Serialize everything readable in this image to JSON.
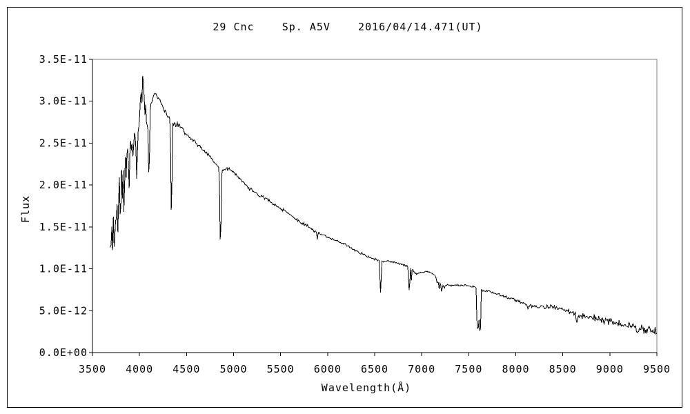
{
  "title": "29 Cnc    Sp. A5V    2016/04/14.471(UT)",
  "frame": {
    "background": "#ffffff",
    "outer_border_color": "#000000",
    "plot_border_color": "#808080",
    "axis_color": "#000000",
    "line_color": "#000000"
  },
  "chart_data": {
    "type": "line",
    "title": "29 Cnc    Sp. A5V    2016/04/14.471(UT)",
    "xlabel": "Wavelength(Å)",
    "ylabel": "Flux",
    "xlim": [
      3500,
      9500
    ],
    "ylim_flux": [
      0,
      3.5e-11
    ],
    "grid": false,
    "legend": false,
    "x_ticks": [
      3500,
      4000,
      4500,
      5000,
      5500,
      6000,
      6500,
      7000,
      7500,
      8000,
      8500,
      9000,
      9500
    ],
    "y_ticks": [
      {
        "value": 0,
        "label": "0.0E+00"
      },
      {
        "value": 5,
        "label": "5.0E-12"
      },
      {
        "value": 10,
        "label": "1.0E-11"
      },
      {
        "value": 15,
        "label": "1.5E-11"
      },
      {
        "value": 20,
        "label": "2.0E-11"
      },
      {
        "value": 25,
        "label": "2.5E-11"
      },
      {
        "value": 30,
        "label": "3.0E-11"
      },
      {
        "value": 35,
        "label": "3.5E-11"
      }
    ],
    "flux_unit_scale": 1e-12,
    "wavelength_range": [
      3690,
      9500
    ],
    "sample_step": 8,
    "continuum": [
      [
        3690,
        13.0
      ],
      [
        3710,
        14.5
      ],
      [
        3730,
        15.5
      ],
      [
        3760,
        17.5
      ],
      [
        3790,
        20.0
      ],
      [
        3820,
        21.5
      ],
      [
        3850,
        23.5
      ],
      [
        3880,
        24.5
      ],
      [
        3910,
        25.5
      ],
      [
        3940,
        26.2
      ],
      [
        3970,
        26.5
      ],
      [
        3995,
        27.2
      ],
      [
        4010,
        30.0
      ],
      [
        4035,
        33.0
      ],
      [
        4050,
        31.2
      ],
      [
        4070,
        29.5
      ],
      [
        4090,
        28.8
      ],
      [
        4115,
        29.5
      ],
      [
        4140,
        30.5
      ],
      [
        4165,
        31.0
      ],
      [
        4195,
        30.5
      ],
      [
        4225,
        30.0
      ],
      [
        4260,
        28.9
      ],
      [
        4300,
        28.2
      ],
      [
        4330,
        27.8
      ],
      [
        4365,
        27.2
      ],
      [
        4400,
        27.2
      ],
      [
        4460,
        26.6
      ],
      [
        4520,
        25.8
      ],
      [
        4580,
        25.2
      ],
      [
        4640,
        24.6
      ],
      [
        4700,
        23.9
      ],
      [
        4760,
        23.3
      ],
      [
        4810,
        22.6
      ],
      [
        4845,
        22.0
      ],
      [
        4880,
        21.6
      ],
      [
        4930,
        22.0
      ],
      [
        4975,
        21.8
      ],
      [
        5025,
        21.2
      ],
      [
        5080,
        20.5
      ],
      [
        5140,
        19.9
      ],
      [
        5200,
        19.4
      ],
      [
        5260,
        18.9
      ],
      [
        5320,
        18.5
      ],
      [
        5380,
        18.1
      ],
      [
        5440,
        17.6
      ],
      [
        5500,
        17.2
      ],
      [
        5560,
        16.8
      ],
      [
        5620,
        16.3
      ],
      [
        5680,
        15.8
      ],
      [
        5740,
        15.4
      ],
      [
        5800,
        15.0
      ],
      [
        5860,
        14.5
      ],
      [
        5920,
        14.2
      ],
      [
        5980,
        13.9
      ],
      [
        6040,
        13.6
      ],
      [
        6100,
        13.3
      ],
      [
        6160,
        13.0
      ],
      [
        6220,
        12.7
      ],
      [
        6280,
        12.3
      ],
      [
        6340,
        11.9
      ],
      [
        6400,
        11.6
      ],
      [
        6460,
        11.3
      ],
      [
        6520,
        11.1
      ],
      [
        6580,
        10.9
      ],
      [
        6640,
        10.9
      ],
      [
        6700,
        10.8
      ],
      [
        6760,
        10.6
      ],
      [
        6820,
        10.4
      ],
      [
        6880,
        10.1
      ],
      [
        6940,
        9.4
      ],
      [
        7000,
        9.6
      ],
      [
        7060,
        9.7
      ],
      [
        7120,
        9.4
      ],
      [
        7180,
        8.8
      ],
      [
        7240,
        8.1
      ],
      [
        7300,
        8.0
      ],
      [
        7360,
        8.1
      ],
      [
        7420,
        8.0
      ],
      [
        7480,
        8.0
      ],
      [
        7540,
        7.9
      ],
      [
        7600,
        7.7
      ],
      [
        7660,
        7.3
      ],
      [
        7720,
        7.3
      ],
      [
        7780,
        7.1
      ],
      [
        7840,
        6.8
      ],
      [
        7900,
        6.6
      ],
      [
        7960,
        6.4
      ],
      [
        8020,
        6.2
      ],
      [
        8080,
        5.9
      ],
      [
        8140,
        5.6
      ],
      [
        8200,
        5.5
      ],
      [
        8260,
        5.4
      ],
      [
        8320,
        5.4
      ],
      [
        8380,
        5.5
      ],
      [
        8440,
        5.4
      ],
      [
        8500,
        5.2
      ],
      [
        8560,
        5.0
      ],
      [
        8620,
        4.7
      ],
      [
        8680,
        4.4
      ],
      [
        8740,
        4.3
      ],
      [
        8800,
        4.2
      ],
      [
        8860,
        4.1
      ],
      [
        8920,
        3.9
      ],
      [
        8980,
        3.8
      ],
      [
        9040,
        3.6
      ],
      [
        9100,
        3.4
      ],
      [
        9160,
        3.3
      ],
      [
        9220,
        3.1
      ],
      [
        9280,
        3.0
      ],
      [
        9340,
        2.8
      ],
      [
        9400,
        2.7
      ],
      [
        9460,
        2.6
      ],
      [
        9500,
        2.5
      ]
    ],
    "absorption_lines": [
      {
        "center": 3712,
        "width": 8,
        "floor": 11.5,
        "shape": 1
      },
      {
        "center": 3734,
        "width": 8,
        "floor": 12.5,
        "shape": 1
      },
      {
        "center": 3750,
        "width": 8,
        "floor": 13.5,
        "shape": 1
      },
      {
        "center": 3771,
        "width": 9,
        "floor": 14.0,
        "shape": 1
      },
      {
        "center": 3798,
        "width": 10,
        "floor": 15.5,
        "shape": 1
      },
      {
        "center": 3820,
        "width": 7,
        "floor": 18.0,
        "shape": 1
      },
      {
        "center": 3835,
        "width": 11,
        "floor": 17.0,
        "shape": 1
      },
      {
        "center": 3860,
        "width": 7,
        "floor": 20.0,
        "shape": 1
      },
      {
        "center": 3889,
        "width": 11,
        "floor": 19.0,
        "shape": 1
      },
      {
        "center": 3912,
        "width": 6,
        "floor": 22.5,
        "shape": 1
      },
      {
        "center": 3933,
        "width": 7,
        "floor": 22.0,
        "shape": 1
      },
      {
        "center": 3970,
        "width": 13,
        "floor": 20.3,
        "shape": 1
      },
      {
        "center": 4023,
        "width": 6,
        "floor": 28.5,
        "shape": 1
      },
      {
        "center": 4056,
        "width": 8,
        "floor": 28.0,
        "shape": 1
      },
      {
        "center": 4078,
        "width": 7,
        "floor": 24.5,
        "shape": 1
      },
      {
        "center": 4101,
        "width": 14,
        "floor": 19.8,
        "shape": 1
      },
      {
        "center": 4340,
        "width": 14,
        "floor": 15.3,
        "shape": 1
      },
      {
        "center": 4861,
        "width": 14,
        "floor": 11.3,
        "shape": 1
      },
      {
        "center": 5172,
        "width": 8,
        "floor": 19.3,
        "shape": 1
      },
      {
        "center": 5890,
        "width": 9,
        "floor": 13.5,
        "shape": 1
      },
      {
        "center": 6563,
        "width": 15,
        "floor": 6.9,
        "shape": 1
      },
      {
        "center": 6868,
        "width": 13,
        "floor": 7.0,
        "shape": 1
      },
      {
        "center": 6890,
        "width": 8,
        "floor": 8.6,
        "shape": 1
      },
      {
        "center": 7165,
        "width": 14,
        "floor": 8.2,
        "shape": 1
      },
      {
        "center": 7186,
        "width": 12,
        "floor": 7.6,
        "shape": 1
      },
      {
        "center": 7212,
        "width": 16,
        "floor": 7.1,
        "shape": 1
      },
      {
        "center": 7240,
        "width": 12,
        "floor": 7.7,
        "shape": 1
      },
      {
        "center": 7598,
        "width": 20,
        "floor": 2.9,
        "shape": 3
      },
      {
        "center": 7620,
        "width": 14,
        "floor": 2.6,
        "shape": 3
      },
      {
        "center": 8130,
        "width": 12,
        "floor": 5.3,
        "shape": 1
      },
      {
        "center": 8650,
        "width": 16,
        "floor": 3.8,
        "shape": 1
      }
    ],
    "noise": [
      [
        3690,
        2.0
      ],
      [
        3750,
        1.7
      ],
      [
        3810,
        1.4
      ],
      [
        3870,
        1.2
      ],
      [
        3930,
        1.0
      ],
      [
        3990,
        0.8
      ],
      [
        4050,
        0.55
      ],
      [
        4150,
        0.45
      ],
      [
        4300,
        0.4
      ],
      [
        4500,
        0.35
      ],
      [
        4700,
        0.3
      ],
      [
        5000,
        0.25
      ],
      [
        5400,
        0.22
      ],
      [
        5800,
        0.2
      ],
      [
        6200,
        0.18
      ],
      [
        6600,
        0.15
      ],
      [
        7000,
        0.15
      ],
      [
        7400,
        0.15
      ],
      [
        7800,
        0.17
      ],
      [
        8200,
        0.25
      ],
      [
        8600,
        0.38
      ],
      [
        8900,
        0.5
      ],
      [
        9200,
        0.65
      ],
      [
        9500,
        0.9
      ]
    ]
  }
}
